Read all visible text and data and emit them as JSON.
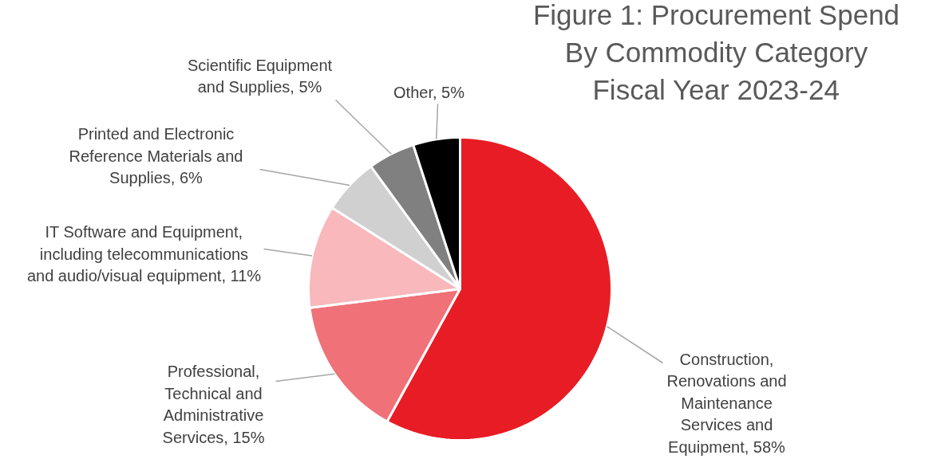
{
  "chart_data": {
    "type": "pie",
    "title": "Figure 1: Procurement Spend By Commodity Category Fiscal Year 2023-24",
    "categories": [
      "Construction, Renovations and Maintenance Services and Equipment",
      "Professional, Technical and Administrative Services",
      "IT Software and Equipment, including telecommunications and audio/visual equipment",
      "Printed and Electronic Reference Materials and Supplies",
      "Scientific Equipment and Supplies",
      "Other"
    ],
    "values": [
      58,
      15,
      11,
      6,
      5,
      5
    ],
    "colors": [
      "#e81c24",
      "#f07178",
      "#f8b8bc",
      "#d0d0d0",
      "#808080",
      "#000000"
    ],
    "value_labels": [
      "58%",
      "15%",
      "11%",
      "6%",
      "5%",
      "5%"
    ]
  }
}
